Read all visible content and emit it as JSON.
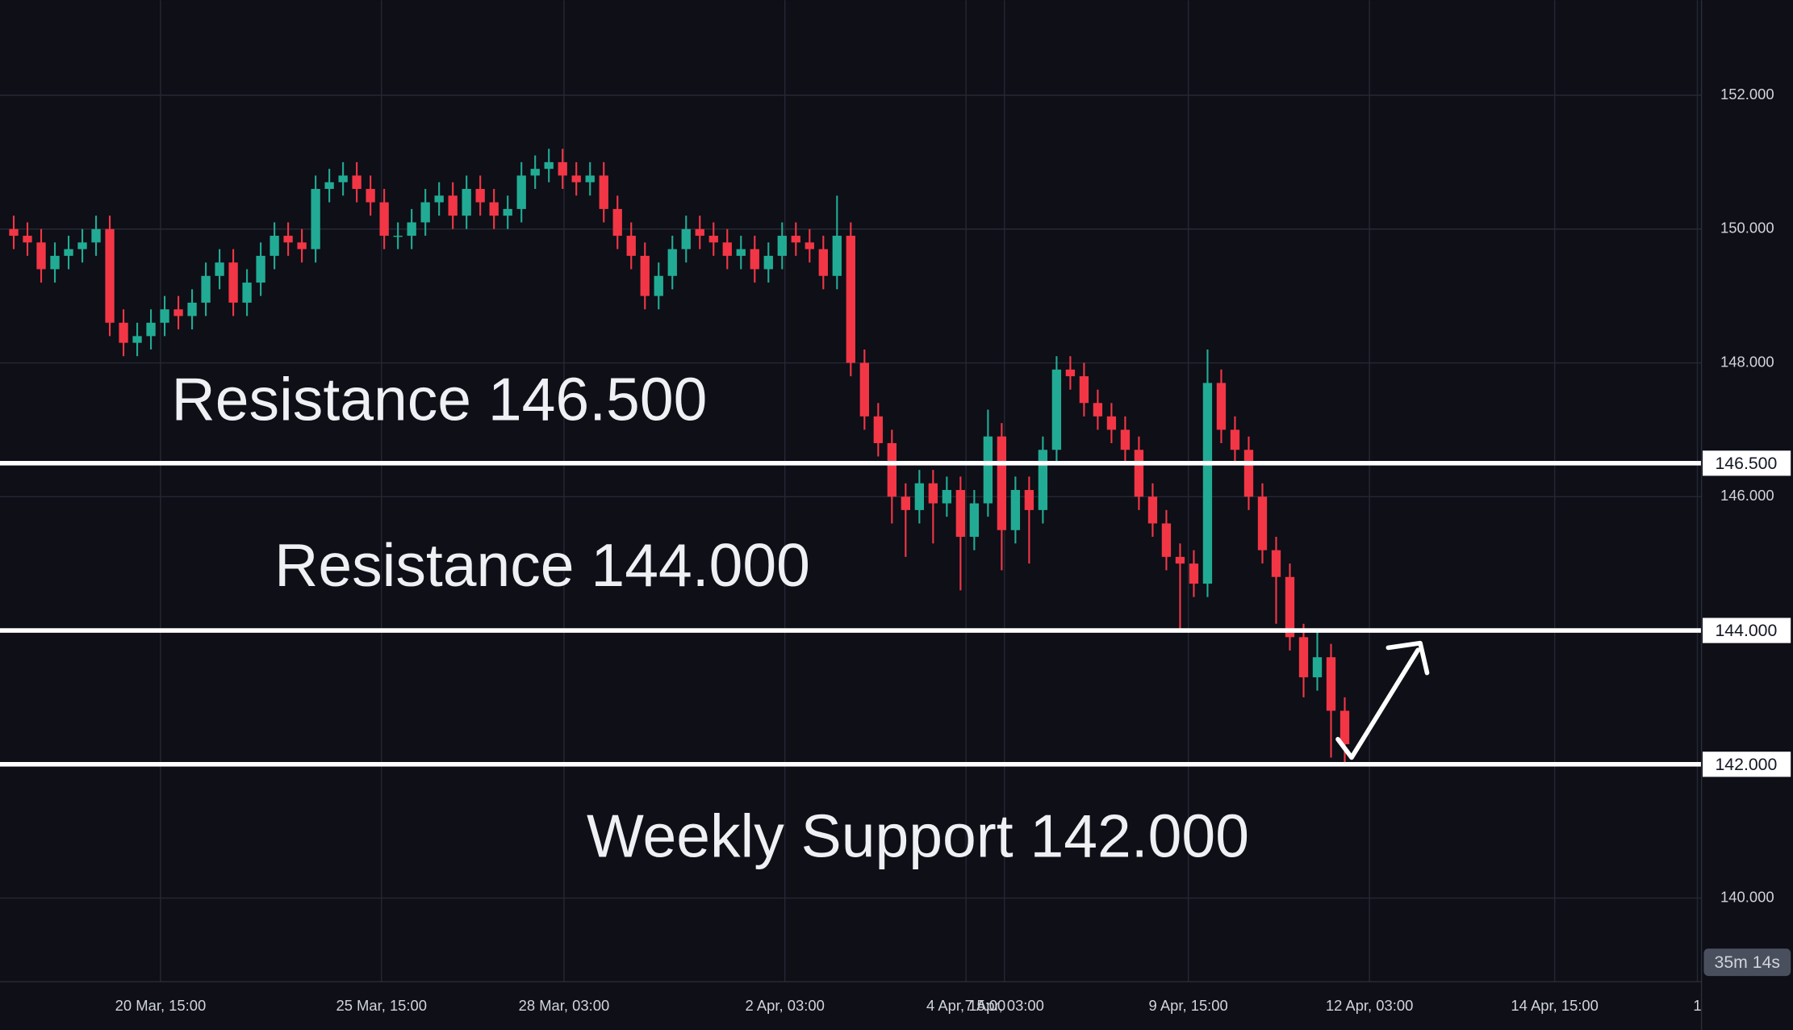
{
  "chart_data": {
    "type": "candlestick",
    "up_color": "#22ab94",
    "down_color": "#f23645",
    "open": [
      150.0,
      149.9,
      149.8,
      149.4,
      149.6,
      149.7,
      149.8,
      150.0,
      148.6,
      148.3,
      148.4,
      148.6,
      148.8,
      148.7,
      148.9,
      149.3,
      149.5,
      148.9,
      149.2,
      149.6,
      149.9,
      149.8,
      149.7,
      150.6,
      150.7,
      150.8,
      150.6,
      150.4,
      149.9,
      149.9,
      150.1,
      150.4,
      150.5,
      150.2,
      150.6,
      150.4,
      150.2,
      150.3,
      150.8,
      150.9,
      151.0,
      150.8,
      150.7,
      150.8,
      150.3,
      149.9,
      149.6,
      149.0,
      149.3,
      149.7,
      150.0,
      149.9,
      149.8,
      149.6,
      149.7,
      149.4,
      149.6,
      149.9,
      149.8,
      149.7,
      149.3,
      149.9,
      148.0,
      147.2,
      146.8,
      146.0,
      145.8,
      146.2,
      145.9,
      146.1,
      145.4,
      145.9,
      146.9,
      145.5,
      146.1,
      145.8,
      146.7,
      147.9,
      147.8,
      147.4,
      147.2,
      147.0,
      146.7,
      146.0,
      145.6,
      145.1,
      145.0,
      144.7,
      147.7,
      147.0,
      146.7,
      146.0,
      145.2,
      144.8,
      143.9,
      143.3,
      143.6,
      142.8
    ],
    "high": [
      150.2,
      150.1,
      150.0,
      149.8,
      149.9,
      150.0,
      150.2,
      150.2,
      148.8,
      148.6,
      148.8,
      149.0,
      149.0,
      149.1,
      149.5,
      149.7,
      149.7,
      149.4,
      149.8,
      150.1,
      150.1,
      150.0,
      150.8,
      150.9,
      151.0,
      151.0,
      150.8,
      150.6,
      150.1,
      150.3,
      150.6,
      150.7,
      150.7,
      150.8,
      150.8,
      150.6,
      150.5,
      151.0,
      151.1,
      151.2,
      151.2,
      151.0,
      151.0,
      151.0,
      150.5,
      150.1,
      149.8,
      149.5,
      149.9,
      150.2,
      150.2,
      150.1,
      150.0,
      149.9,
      149.9,
      149.8,
      150.1,
      150.1,
      150.0,
      149.9,
      150.5,
      150.1,
      148.2,
      147.4,
      147.0,
      146.2,
      146.4,
      146.4,
      146.3,
      146.3,
      146.1,
      147.3,
      147.1,
      146.3,
      146.3,
      146.9,
      148.1,
      148.1,
      148.0,
      147.6,
      147.4,
      147.2,
      146.9,
      146.2,
      145.8,
      145.3,
      145.2,
      148.2,
      147.9,
      147.2,
      146.9,
      146.2,
      145.4,
      145.0,
      144.1,
      144.0,
      143.8,
      143.0
    ],
    "low": [
      149.7,
      149.6,
      149.2,
      149.2,
      149.4,
      149.5,
      149.6,
      148.4,
      148.1,
      148.1,
      148.2,
      148.4,
      148.5,
      148.5,
      148.7,
      149.1,
      148.7,
      148.7,
      149.0,
      149.4,
      149.6,
      149.5,
      149.5,
      150.4,
      150.5,
      150.4,
      150.2,
      149.7,
      149.7,
      149.7,
      149.9,
      150.2,
      150.0,
      150.0,
      150.2,
      150.0,
      150.0,
      150.1,
      150.6,
      150.7,
      150.6,
      150.5,
      150.5,
      150.1,
      149.7,
      149.4,
      148.8,
      148.8,
      149.1,
      149.5,
      149.7,
      149.6,
      149.4,
      149.4,
      149.2,
      149.2,
      149.4,
      149.6,
      149.5,
      149.1,
      149.1,
      147.8,
      147.0,
      146.6,
      145.6,
      145.1,
      145.6,
      145.3,
      145.7,
      144.6,
      145.2,
      145.7,
      144.9,
      145.3,
      145.0,
      145.6,
      146.5,
      147.6,
      147.2,
      147.0,
      146.8,
      146.5,
      145.8,
      145.4,
      144.9,
      144.0,
      144.5,
      144.5,
      146.8,
      146.5,
      145.8,
      145.0,
      144.1,
      143.7,
      143.0,
      143.1,
      142.1,
      142.0
    ],
    "close": [
      149.9,
      149.8,
      149.4,
      149.6,
      149.7,
      149.8,
      150.0,
      148.6,
      148.3,
      148.4,
      148.6,
      148.8,
      148.7,
      148.9,
      149.3,
      149.5,
      148.9,
      149.2,
      149.6,
      149.9,
      149.8,
      149.7,
      150.6,
      150.7,
      150.8,
      150.6,
      150.4,
      149.9,
      149.9,
      150.1,
      150.4,
      150.5,
      150.2,
      150.6,
      150.4,
      150.2,
      150.3,
      150.8,
      150.9,
      151.0,
      150.8,
      150.7,
      150.8,
      150.3,
      149.9,
      149.6,
      149.0,
      149.3,
      149.7,
      150.0,
      149.9,
      149.8,
      149.6,
      149.7,
      149.4,
      149.6,
      149.9,
      149.8,
      149.7,
      149.3,
      149.9,
      148.0,
      147.2,
      146.8,
      146.0,
      145.8,
      146.2,
      145.9,
      146.1,
      145.4,
      145.9,
      146.9,
      145.5,
      146.1,
      145.8,
      146.7,
      147.9,
      147.8,
      147.4,
      147.2,
      147.0,
      146.7,
      146.0,
      145.6,
      145.1,
      145.0,
      144.7,
      147.7,
      147.0,
      146.7,
      146.0,
      145.2,
      144.8,
      143.9,
      143.3,
      143.6,
      142.8,
      142.3
    ],
    "xlim": [
      -1,
      123
    ],
    "xticks": [
      {
        "value": 10.7,
        "label": "20 Mar, 15:00"
      },
      {
        "value": 26.8,
        "label": "25 Mar, 15:00"
      },
      {
        "value": 40.1,
        "label": "28 Mar, 03:00"
      },
      {
        "value": 56.2,
        "label": "2 Apr, 03:00"
      },
      {
        "value": 69.4,
        "label": "4 Apr, 15:00"
      },
      {
        "value": 72.2,
        "label": "7 Apr, 03:00"
      },
      {
        "value": 85.6,
        "label": "9 Apr, 15:00"
      },
      {
        "value": 98.8,
        "label": "12 Apr, 03:00"
      },
      {
        "value": 112.3,
        "label": "14 Apr, 15:00"
      },
      {
        "value": 122.7,
        "label": "1"
      }
    ],
    "ylim": [
      138.75,
      153.42
    ],
    "yticks": [
      {
        "value": 140,
        "label": "140.000"
      },
      {
        "value": 146,
        "label": "146.000"
      },
      {
        "value": 148,
        "label": "148.000"
      },
      {
        "value": 150,
        "label": "150.000"
      },
      {
        "value": 152,
        "label": "152.000"
      }
    ],
    "grid": true,
    "levels": [
      {
        "value": 146.5,
        "label": "146.500",
        "text": "Resistance 146.500"
      },
      {
        "value": 144,
        "label": "144.000",
        "text": "Resistance 144.000"
      },
      {
        "value": 142,
        "label": "142.000",
        "text": "Weekly Support 142.000"
      }
    ],
    "level_color": "#ffffff",
    "countdown": "35m 14s"
  }
}
